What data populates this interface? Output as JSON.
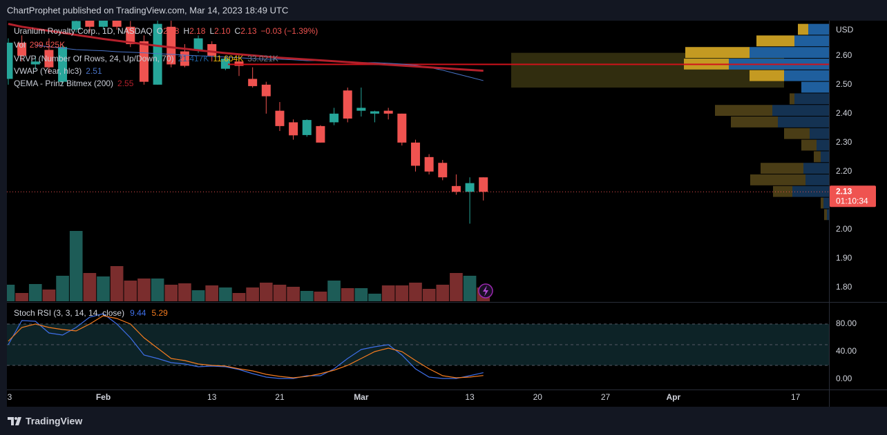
{
  "header": "ChartProphet published on TradingView.com, Mar 14, 2023 18:49 UTC",
  "footer": "TradingView",
  "chart_data": [
    {
      "type": "candlestick",
      "title": "Uranium Royalty Corp., 1D, NASDAQ",
      "legend": {
        "o_label": "O",
        "o": "2.18",
        "h_label": "H",
        "h": "2.18",
        "l_label": "L",
        "l": "2.10",
        "c_label": "C",
        "c": "2.13",
        "change": "−0.03 (−1.39%)"
      },
      "axis_unit": "USD",
      "x": [
        0,
        1,
        2,
        3,
        4,
        5,
        6,
        7,
        8,
        9,
        10,
        11,
        12,
        13,
        14,
        15,
        16,
        17,
        18,
        19,
        20,
        21,
        22,
        23,
        24,
        25,
        26,
        27,
        28,
        29,
        30,
        31,
        32,
        33,
        34,
        35
      ],
      "open": [
        2.52,
        2.645,
        2.57,
        2.62,
        2.51,
        2.69,
        2.74,
        2.7,
        2.74,
        2.7,
        2.65,
        2.5,
        2.7,
        2.615,
        2.62,
        2.64,
        2.555,
        2.58,
        2.52,
        2.5,
        2.41,
        2.37,
        2.326,
        2.357,
        2.37,
        2.48,
        2.41,
        2.4,
        2.41,
        2.4,
        2.3,
        2.25,
        2.23,
        2.15,
        2.13,
        2.18
      ],
      "high": [
        2.66,
        2.67,
        2.6,
        2.66,
        2.64,
        2.73,
        2.75,
        2.76,
        2.75,
        2.72,
        2.67,
        2.74,
        2.73,
        2.64,
        2.67,
        2.65,
        2.6,
        2.59,
        2.56,
        2.51,
        2.44,
        2.38,
        2.38,
        2.36,
        2.42,
        2.49,
        2.49,
        2.41,
        2.42,
        2.4,
        2.31,
        2.26,
        2.24,
        2.19,
        2.18,
        2.18
      ],
      "low": [
        2.5,
        2.58,
        2.55,
        2.54,
        2.5,
        2.68,
        2.68,
        2.69,
        2.69,
        2.63,
        2.5,
        2.5,
        2.56,
        2.56,
        2.61,
        2.58,
        2.55,
        2.53,
        2.49,
        2.4,
        2.34,
        2.31,
        2.32,
        2.3,
        2.36,
        2.37,
        2.39,
        2.37,
        2.38,
        2.29,
        2.2,
        2.19,
        2.17,
        2.12,
        2.02,
        2.1
      ],
      "close": [
        2.645,
        2.6,
        2.58,
        2.56,
        2.63,
        2.72,
        2.7,
        2.74,
        2.7,
        2.64,
        2.51,
        2.71,
        2.57,
        2.565,
        2.66,
        2.6,
        2.59,
        2.565,
        2.495,
        2.46,
        2.357,
        2.325,
        2.378,
        2.3,
        2.4,
        2.383,
        2.42,
        2.408,
        2.4,
        2.3,
        2.22,
        2.2,
        2.18,
        2.13,
        2.16,
        2.13
      ],
      "up_color": "#26a69a",
      "down_color": "#ef5350",
      "xlim": [
        -0.1,
        60.46
      ],
      "ylim": [
        1.752,
        2.721
      ],
      "yticks": [
        {
          "value": 1.8,
          "label": "1.80"
        },
        {
          "value": 1.9,
          "label": "1.90"
        },
        {
          "value": 2,
          "label": "2.00"
        },
        {
          "value": 2.2,
          "label": "2.20"
        },
        {
          "value": 2.3,
          "label": "2.30"
        },
        {
          "value": 2.4,
          "label": "2.40"
        },
        {
          "value": 2.5,
          "label": "2.50"
        },
        {
          "value": 2.6,
          "label": "2.60"
        }
      ],
      "last_price": {
        "value": 2.13,
        "label": "2.13",
        "countdown": "01:10:34",
        "color": "#ef5350"
      },
      "volume": {
        "name": "Vol",
        "value_label": "299.525K",
        "up_color": "#1d5c57",
        "down_color": "#7a2d2d",
        "values": [
          360000,
          180000,
          375000,
          255000,
          555000,
          1530000,
          615000,
          540000,
          765000,
          450000,
          495000,
          495000,
          360000,
          390000,
          240000,
          345000,
          300000,
          180000,
          300000,
          405000,
          360000,
          315000,
          225000,
          210000,
          450000,
          285000,
          285000,
          165000,
          345000,
          345000,
          405000,
          270000,
          360000,
          615000,
          555000,
          299525
        ]
      },
      "profile": {
        "name": "VRVP (Number Of Rows, 24, Up/Down, 70)",
        "legend_values": [
          "21.417K",
          "11.604K",
          "33.021K"
        ],
        "prices": [
          2.67,
          2.63,
          2.59,
          2.55,
          2.51,
          2.47,
          2.43,
          2.39,
          2.35,
          2.31,
          2.27,
          2.23,
          2.19,
          2.15,
          2.11,
          2.07,
          2.03
        ],
        "up": [
          150000,
          250000,
          575000,
          725000,
          325000,
          200000,
          250000,
          410000,
          370000,
          140000,
          90000,
          60000,
          185000,
          170000,
          265000,
          40000,
          15000
        ],
        "down": [
          75000,
          275000,
          465000,
          325000,
          250000,
          0,
          35000,
          415000,
          340000,
          185000,
          110000,
          50000,
          310000,
          400000,
          140000,
          20000,
          20000
        ],
        "value_area": [
          2.49,
          2.61
        ],
        "poc": 2.57,
        "poc_color": "#d0121b",
        "up_color": "#1f5f9e",
        "down_color": "#c49a22",
        "up_color_dim": "#143252",
        "down_color_dim": "#4a3d16",
        "value_area_color": "#3a3512"
      },
      "lines": [
        {
          "name": "VWAP (Year, hlc3)",
          "value_label": "2.51",
          "color": "#4a74c9",
          "width": 1,
          "values": [
            null,
            null,
            2.636,
            2.631,
            2.626,
            2.621,
            2.619,
            2.617,
            2.614,
            2.612,
            2.61,
            2.607,
            2.605,
            2.602,
            2.6,
            2.598,
            2.595,
            2.593,
            2.59,
            2.588,
            2.588,
            2.586,
            2.583,
            2.583,
            2.581,
            2.579,
            2.576,
            2.576,
            2.574,
            2.571,
            2.567,
            2.56,
            2.55,
            2.538,
            2.526,
            2.514
          ]
        },
        {
          "name": "QEMA - Prinz Bitmex (200)",
          "value_label": "2.55",
          "color": "#b3202b",
          "width": 3,
          "values": [
            2.71,
            2.7,
            2.693,
            2.686,
            2.679,
            2.672,
            2.665,
            2.658,
            2.652,
            2.646,
            2.64,
            2.634,
            2.629,
            2.624,
            2.619,
            2.614,
            2.609,
            2.605,
            2.601,
            2.597,
            2.593,
            2.59,
            2.587,
            2.584,
            2.581,
            2.578,
            2.575,
            2.572,
            2.569,
            2.566,
            2.563,
            2.56,
            2.557,
            2.554,
            2.551,
            2.548
          ]
        }
      ]
    },
    {
      "type": "stoch",
      "title": "Stoch RSI (3, 3, 14, 14, close)",
      "x": [
        0,
        1,
        2,
        3,
        4,
        5,
        6,
        7,
        8,
        9,
        10,
        11,
        12,
        13,
        14,
        15,
        16,
        17,
        18,
        19,
        20,
        21,
        22,
        23,
        24,
        25,
        26,
        27,
        28,
        29,
        30,
        31,
        32,
        33,
        34,
        35
      ],
      "series": [
        {
          "color": "#3e6fe8",
          "value_label": "9.44",
          "values": [
            50,
            85,
            84,
            67,
            64,
            75,
            90,
            95,
            80,
            60,
            35,
            30,
            24,
            22,
            18,
            19,
            18,
            14,
            8,
            3,
            1,
            1,
            5,
            5,
            15,
            30,
            43,
            47,
            50,
            35,
            15,
            3,
            1,
            1,
            5,
            9.44
          ]
        },
        {
          "color": "#f57c1f",
          "value_label": "5.29",
          "values": [
            55,
            75,
            80,
            75,
            72,
            70,
            80,
            92,
            88,
            80,
            60,
            45,
            30,
            27,
            22,
            20,
            19,
            15,
            12,
            7,
            4,
            2,
            4,
            8,
            13,
            20,
            30,
            40,
            45,
            40,
            27,
            15,
            5,
            2,
            3,
            5.29
          ]
        }
      ],
      "xlim": [
        -0.1,
        60.46
      ],
      "ylim": [
        -15,
        110
      ],
      "yticks": [
        {
          "value": 80,
          "label": "80.00"
        },
        {
          "value": 40,
          "label": "40.00"
        },
        {
          "value": 0,
          "label": "0.00"
        }
      ],
      "band": [
        20,
        80
      ],
      "band_color": "#0d2327",
      "band_lines": [
        80,
        50,
        20
      ],
      "xticks": [
        {
          "value": 0,
          "label": "3"
        },
        {
          "value": 7,
          "label": "Feb"
        },
        {
          "value": 15,
          "label": "13"
        },
        {
          "value": 20,
          "label": "21"
        },
        {
          "value": 26,
          "label": "Mar"
        },
        {
          "value": 34,
          "label": "13"
        },
        {
          "value": 39,
          "label": "20"
        },
        {
          "value": 44,
          "label": "27"
        },
        {
          "value": 49,
          "label": "Apr"
        },
        {
          "value": 58,
          "label": "17"
        }
      ]
    }
  ]
}
